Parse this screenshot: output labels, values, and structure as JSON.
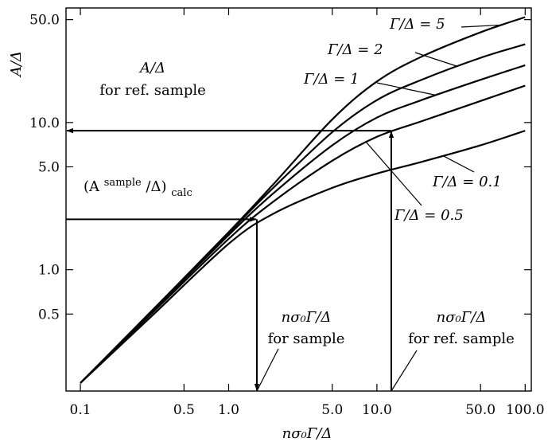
{
  "chart_data": {
    "type": "line",
    "xscale": "log",
    "yscale": "log",
    "xlim": [
      0.08,
      110
    ],
    "ylim": [
      0.15,
      60
    ],
    "grid": false,
    "xlabel": "nσ₀Γ/Δ",
    "ylabel": "A/Δ",
    "xticks": [
      0.1,
      0.5,
      1.0,
      5.0,
      10.0,
      50.0,
      100.0
    ],
    "xtick_labels": [
      "0.1",
      "0.5",
      "1.0",
      "5.0",
      "10.0",
      "50.0",
      "100.0"
    ],
    "yticks": [
      0.5,
      1.0,
      5.0,
      10.0,
      50.0
    ],
    "ytick_labels": [
      "0.5",
      "1.0",
      "5.0",
      "10.0",
      "50.0"
    ],
    "series": [
      {
        "name": "Γ/Δ = 5",
        "x": [
          0.1,
          0.3,
          1,
          2,
          5,
          10,
          20,
          50,
          100
        ],
        "y": [
          0.17,
          0.52,
          1.8,
          3.8,
          10.5,
          19,
          28,
          41,
          52
        ]
      },
      {
        "name": "Γ/Δ = 2",
        "x": [
          0.1,
          0.3,
          1,
          2,
          5,
          10,
          20,
          50,
          100
        ],
        "y": [
          0.17,
          0.52,
          1.78,
          3.6,
          8.6,
          14.2,
          19.5,
          27.5,
          34
        ]
      },
      {
        "name": "Γ/Δ = 1",
        "x": [
          0.1,
          0.3,
          1,
          2,
          5,
          10,
          20,
          50,
          100
        ],
        "y": [
          0.17,
          0.51,
          1.72,
          3.3,
          7.0,
          10.8,
          14.2,
          19.5,
          24.5
        ]
      },
      {
        "name": "Γ/Δ = 0.5",
        "x": [
          0.1,
          0.3,
          1,
          2,
          5,
          10,
          20,
          50,
          100
        ],
        "y": [
          0.17,
          0.5,
          1.62,
          2.9,
          5.5,
          8.0,
          10.2,
          14.0,
          17.8
        ]
      },
      {
        "name": "Γ/Δ = 0.1",
        "x": [
          0.1,
          0.3,
          1,
          2,
          5,
          10,
          20,
          50,
          100
        ],
        "y": [
          0.17,
          0.48,
          1.5,
          2.4,
          3.6,
          4.5,
          5.4,
          7.0,
          8.8
        ]
      }
    ],
    "annotations": {
      "ref_a_top": "A/Δ",
      "ref_a_bottom": "for ref. sample",
      "calc_base": "(A",
      "calc_sup": "sample",
      "calc_mid": "/Δ)",
      "calc_sub": "calc",
      "sample_x_top": "nσ₀Γ/Δ",
      "sample_x_bottom": "for sample",
      "ref_x_top": "nσ₀Γ/Δ",
      "ref_x_bottom": "for ref. sample"
    },
    "reference_construction": {
      "ref_sample_x": 12.5,
      "ref_sample_y": 8.8,
      "sample_x": 1.55,
      "sample_y": 2.2
    }
  }
}
